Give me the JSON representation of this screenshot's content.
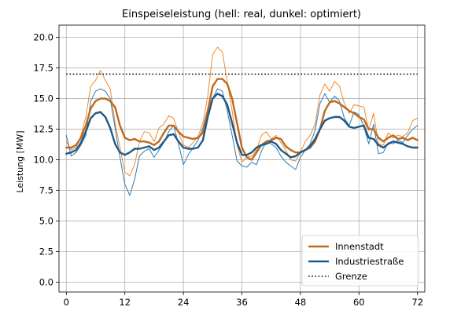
{
  "chart_data": {
    "type": "line",
    "title": "Einspeiseleistung (hell: real, dunkel: optimiert)",
    "xlabel": "",
    "ylabel": "Leistung [MW]",
    "xlim": [
      -1.5,
      73.5
    ],
    "ylim": [
      -0.8,
      21.0
    ],
    "xticks": [
      0,
      12,
      24,
      36,
      48,
      60,
      72
    ],
    "yticks": [
      0.0,
      2.5,
      5.0,
      7.5,
      10.0,
      12.5,
      15.0,
      17.5,
      20.0
    ],
    "ytick_format": "0.0",
    "grid": true,
    "legend_position": "lower-right",
    "colors": {
      "innenstadt_dark": "#c0691b",
      "innenstadt_light": "#ef8a2c",
      "industrie_dark": "#1f5a85",
      "industrie_light": "#2e7bb3",
      "grenze": "#000000"
    },
    "limit_line": {
      "name": "Grenze",
      "y": 17.0,
      "x": [
        0,
        72
      ]
    },
    "series": [
      {
        "name": "Innenstadt",
        "variant": "optimiert",
        "color": "#c0691b",
        "x": [
          0,
          1,
          2,
          3,
          4,
          5,
          6,
          7,
          8,
          9,
          10,
          11,
          12,
          13,
          14,
          15,
          16,
          17,
          18,
          19,
          20,
          21,
          22,
          23,
          24,
          25,
          26,
          27,
          28,
          29,
          30,
          31,
          32,
          33,
          34,
          35,
          36,
          37,
          38,
          39,
          40,
          41,
          42,
          43,
          44,
          45,
          46,
          47,
          48,
          49,
          50,
          51,
          52,
          53,
          54,
          55,
          56,
          57,
          58,
          59,
          60,
          61,
          62,
          63,
          64,
          65,
          66,
          67,
          68,
          69,
          70,
          71,
          72
        ],
        "y": [
          11.0,
          11.0,
          11.2,
          11.8,
          12.8,
          14.2,
          14.8,
          15.0,
          15.0,
          14.8,
          14.3,
          12.8,
          11.8,
          11.6,
          11.7,
          11.5,
          11.5,
          11.4,
          11.2,
          11.5,
          12.2,
          12.8,
          12.8,
          12.3,
          11.9,
          11.8,
          11.7,
          11.8,
          12.2,
          14.0,
          16.0,
          16.6,
          16.6,
          16.2,
          15.0,
          13.0,
          11.0,
          10.2,
          10.0,
          10.6,
          11.2,
          11.5,
          11.6,
          11.8,
          11.7,
          11.1,
          10.8,
          10.6,
          10.6,
          10.8,
          11.0,
          11.5,
          12.5,
          14.0,
          14.7,
          14.8,
          14.6,
          14.3,
          14.0,
          13.8,
          13.5,
          13.3,
          12.5,
          12.5,
          11.8,
          11.5,
          11.8,
          12.0,
          11.7,
          11.8,
          11.6,
          11.8,
          11.6
        ],
        "line_width": 2.4
      },
      {
        "name": "",
        "variant": "real",
        "color": "#ef8a2c",
        "x": [
          0,
          1,
          2,
          3,
          4,
          5,
          6,
          7,
          8,
          9,
          10,
          11,
          12,
          13,
          14,
          15,
          16,
          17,
          18,
          19,
          20,
          21,
          22,
          23,
          24,
          25,
          26,
          27,
          28,
          29,
          30,
          31,
          32,
          33,
          34,
          35,
          36,
          37,
          38,
          39,
          40,
          41,
          42,
          43,
          44,
          45,
          46,
          47,
          48,
          49,
          50,
          51,
          52,
          53,
          54,
          55,
          56,
          57,
          58,
          59,
          60,
          61,
          62,
          63,
          64,
          65,
          66,
          67,
          68,
          69,
          70,
          71,
          72
        ],
        "y": [
          11.5,
          10.8,
          11.0,
          12.0,
          13.5,
          16.0,
          16.5,
          17.3,
          16.5,
          15.8,
          13.0,
          11.0,
          9.0,
          8.7,
          9.6,
          11.5,
          12.3,
          12.2,
          11.5,
          12.6,
          12.9,
          13.6,
          13.4,
          12.2,
          11.2,
          11.0,
          11.4,
          11.9,
          13.0,
          15.2,
          18.6,
          19.2,
          18.8,
          16.4,
          14.0,
          11.2,
          9.8,
          10.2,
          10.3,
          10.8,
          12.0,
          12.3,
          11.7,
          12.0,
          11.4,
          10.8,
          10.0,
          9.9,
          10.6,
          11.5,
          12.0,
          12.9,
          15.3,
          16.2,
          15.6,
          16.4,
          16.0,
          14.6,
          13.8,
          14.5,
          14.4,
          14.3,
          12.4,
          13.8,
          11.3,
          11.2,
          12.2,
          11.8,
          12.0,
          11.9,
          12.2,
          13.2,
          13.4
        ],
        "line_width": 1.0
      },
      {
        "name": "Industriestraße",
        "variant": "optimiert",
        "color": "#1f5a85",
        "x": [
          0,
          1,
          2,
          3,
          4,
          5,
          6,
          7,
          8,
          9,
          10,
          11,
          12,
          13,
          14,
          15,
          16,
          17,
          18,
          19,
          20,
          21,
          22,
          23,
          24,
          25,
          26,
          27,
          28,
          29,
          30,
          31,
          32,
          33,
          34,
          35,
          36,
          37,
          38,
          39,
          40,
          41,
          42,
          43,
          44,
          45,
          46,
          47,
          48,
          49,
          50,
          51,
          52,
          53,
          54,
          55,
          56,
          57,
          58,
          59,
          60,
          61,
          62,
          63,
          64,
          65,
          66,
          67,
          68,
          69,
          70,
          71,
          72
        ],
        "y": [
          10.5,
          10.6,
          10.8,
          11.4,
          12.3,
          13.4,
          13.8,
          13.9,
          13.5,
          12.6,
          11.3,
          10.6,
          10.4,
          10.6,
          10.9,
          10.9,
          11.0,
          11.1,
          10.8,
          11.0,
          11.5,
          12.0,
          12.1,
          11.5,
          11.0,
          10.9,
          10.9,
          11.0,
          11.6,
          13.5,
          15.0,
          15.4,
          15.2,
          14.5,
          13.0,
          11.4,
          10.4,
          10.4,
          10.6,
          11.0,
          11.2,
          11.3,
          11.5,
          11.3,
          10.8,
          10.5,
          10.2,
          10.3,
          10.6,
          10.8,
          11.1,
          11.7,
          12.5,
          13.2,
          13.4,
          13.5,
          13.5,
          13.2,
          12.7,
          12.6,
          12.7,
          12.8,
          11.8,
          11.7,
          11.2,
          11.0,
          11.3,
          11.5,
          11.4,
          11.3,
          11.1,
          11.0,
          11.0
        ],
        "line_width": 2.4
      },
      {
        "name": "",
        "variant": "real",
        "color": "#2e7bb3",
        "x": [
          0,
          1,
          2,
          3,
          4,
          5,
          6,
          7,
          8,
          9,
          10,
          11,
          12,
          13,
          14,
          15,
          16,
          17,
          18,
          19,
          20,
          21,
          22,
          23,
          24,
          25,
          26,
          27,
          28,
          29,
          30,
          31,
          32,
          33,
          34,
          35,
          36,
          37,
          38,
          39,
          40,
          41,
          42,
          43,
          44,
          45,
          46,
          47,
          48,
          49,
          50,
          51,
          52,
          53,
          54,
          55,
          56,
          57,
          58,
          59,
          60,
          61,
          62,
          63,
          64,
          65,
          66,
          67,
          68,
          69,
          70,
          71,
          72
        ],
        "y": [
          12.0,
          10.3,
          10.6,
          11.2,
          12.0,
          14.8,
          15.6,
          15.8,
          15.6,
          15.0,
          12.6,
          10.2,
          8.0,
          7.1,
          8.4,
          10.3,
          10.7,
          10.9,
          10.2,
          10.8,
          11.4,
          12.3,
          12.8,
          11.3,
          9.6,
          10.4,
          11.0,
          11.6,
          12.6,
          14.2,
          15.0,
          15.8,
          15.6,
          14.0,
          12.0,
          9.9,
          9.5,
          9.4,
          9.8,
          9.6,
          10.7,
          11.5,
          11.3,
          11.0,
          10.3,
          9.8,
          9.5,
          9.2,
          10.2,
          10.8,
          11.3,
          12.4,
          14.6,
          15.4,
          14.7,
          15.2,
          14.8,
          13.4,
          12.8,
          13.9,
          13.7,
          12.7,
          11.3,
          12.9,
          10.5,
          10.6,
          11.4,
          11.3,
          11.6,
          11.4,
          12.0,
          12.5,
          12.8
        ],
        "line_width": 1.0
      }
    ],
    "legend": [
      {
        "label": "Innenstadt",
        "color": "#c0691b",
        "style": "solid"
      },
      {
        "label": "Industriestraße",
        "color": "#1f5a85",
        "style": "solid"
      },
      {
        "label": "Grenze",
        "color": "#000000",
        "style": "dotted"
      }
    ]
  }
}
